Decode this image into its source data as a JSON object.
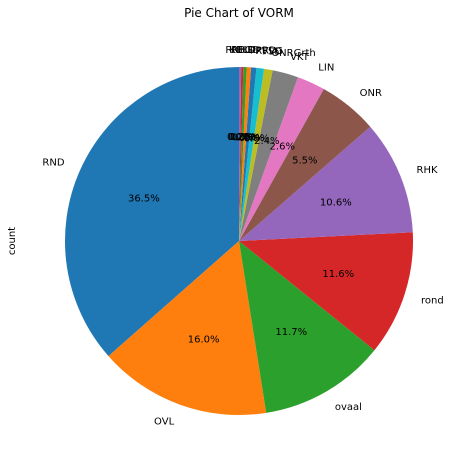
{
  "chart_data": {
    "type": "pie",
    "title": "Pie Chart of VORM",
    "ylabel": "count",
    "start_angle_deg": 90,
    "direction": "counterclockwise",
    "slices": [
      {
        "label": "RND",
        "value": 36.5,
        "pct_label": "36.5%",
        "color": "#1f77b4"
      },
      {
        "label": "OVL",
        "value": 16.0,
        "pct_label": "16.0%",
        "color": "#ff7f0e"
      },
      {
        "label": "ovaal",
        "value": 11.7,
        "pct_label": "11.7%",
        "color": "#2ca02c"
      },
      {
        "label": "rond",
        "value": 11.6,
        "pct_label": "11.6%",
        "color": "#d62728"
      },
      {
        "label": "RHK",
        "value": 10.6,
        "pct_label": "10.6%",
        "color": "#9467bd"
      },
      {
        "label": "ONR",
        "value": 5.5,
        "pct_label": "5.5%",
        "color": "#8c564b"
      },
      {
        "label": "LIN",
        "value": 2.6,
        "pct_label": "2.6%",
        "color": "#e377c2"
      },
      {
        "label": "VKT",
        "value": 2.4,
        "pct_label": "2.4%",
        "color": "#7f7f7f"
      },
      {
        "label": "ONRGrth",
        "value": 0.8,
        "pct_label": "0.8%",
        "color": "#bcbd22"
      },
      {
        "label": "FSD",
        "value": 0.7,
        "pct_label": "0.7%",
        "color": "#17becf"
      },
      {
        "label": "RVVG",
        "value": 0.5,
        "pct_label": "0.5%",
        "color": "#1f77b4"
      },
      {
        "label": "PPRD",
        "value": 0.4,
        "pct_label": "0.4%",
        "color": "#ff7f0e"
      },
      {
        "label": "RBGD",
        "value": 0.3,
        "pct_label": "0.3%",
        "color": "#2ca02c"
      },
      {
        "label": "KBLD",
        "value": 0.2,
        "pct_label": "0.2%",
        "color": "#d62728"
      },
      {
        "label": "RNHD",
        "value": 0.2,
        "pct_label": "0.2%",
        "color": "#9467bd"
      }
    ]
  }
}
